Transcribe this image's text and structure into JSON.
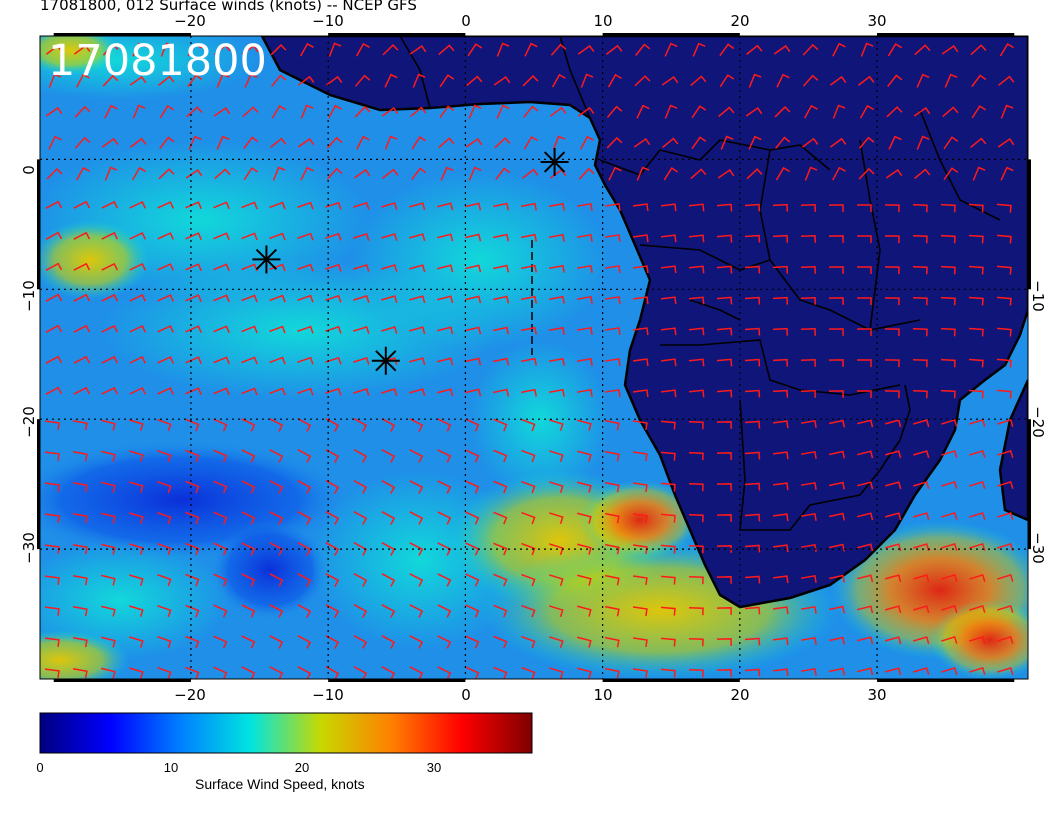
{
  "title": "17081800, 012 Surface winds (knots) -- NCEP GFS",
  "stamp": "17081800",
  "map": {
    "lon_range": [
      -31,
      41
    ],
    "lat_range": [
      -40,
      9.5
    ],
    "lon_ticks_top": [
      "−20",
      "−10",
      "0",
      "10",
      "20",
      "30"
    ],
    "lon_ticks_bottom": [
      "−20",
      "−10",
      "0",
      "10",
      "20",
      "30"
    ],
    "lat_ticks_left": [
      "0",
      "−10",
      "−20",
      "−30"
    ],
    "lat_ticks_right": [
      "−10",
      "−20",
      "−30"
    ],
    "grid": true,
    "storm_markers": [
      {
        "lon": 6.5,
        "lat": -0.2
      },
      {
        "lon": -14.5,
        "lat": -7.7
      },
      {
        "lon": -5.8,
        "lat": -15.5
      }
    ],
    "barb_color": "#ff1a1a",
    "land_color": "#10157a",
    "ocean_base_color": "#1f8fe8"
  },
  "colorbar": {
    "title": "Surface Wind Speed, knots",
    "labels": [
      "0",
      "10",
      "20",
      "30"
    ],
    "range": [
      0,
      37
    ],
    "colors": [
      "#00007f",
      "#0000ff",
      "#0080ff",
      "#00e5e0",
      "#c8d800",
      "#ff8000",
      "#ff0000",
      "#7f0000"
    ]
  }
}
